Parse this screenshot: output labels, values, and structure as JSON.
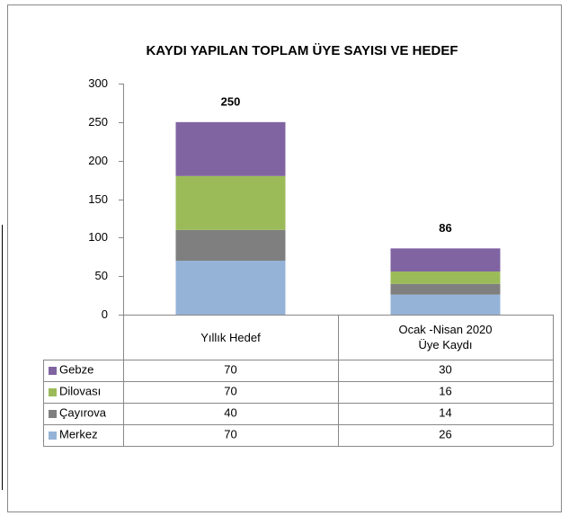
{
  "chart_data": {
    "type": "stacked_bar",
    "title": "KAYDI YAPILAN TOPLAM ÜYE SAYISI VE HEDEF",
    "categories": [
      "Yıllık Hedef",
      "Ocak -Nisan 2020\nÜye Kaydı"
    ],
    "series": [
      {
        "name": "Merkez",
        "color": "#95b3d7",
        "values": [
          70,
          26
        ]
      },
      {
        "name": "Çayırova",
        "color": "#7f7f7f",
        "values": [
          40,
          14
        ]
      },
      {
        "name": "Dilovası",
        "color": "#9bbb59",
        "values": [
          70,
          16
        ]
      },
      {
        "name": "Gebze",
        "color": "#8064a2",
        "values": [
          70,
          30
        ]
      }
    ],
    "totals": [
      250,
      86
    ],
    "ylim": [
      0,
      300
    ],
    "yticks": [
      0,
      50,
      100,
      150,
      200,
      250,
      300
    ]
  }
}
